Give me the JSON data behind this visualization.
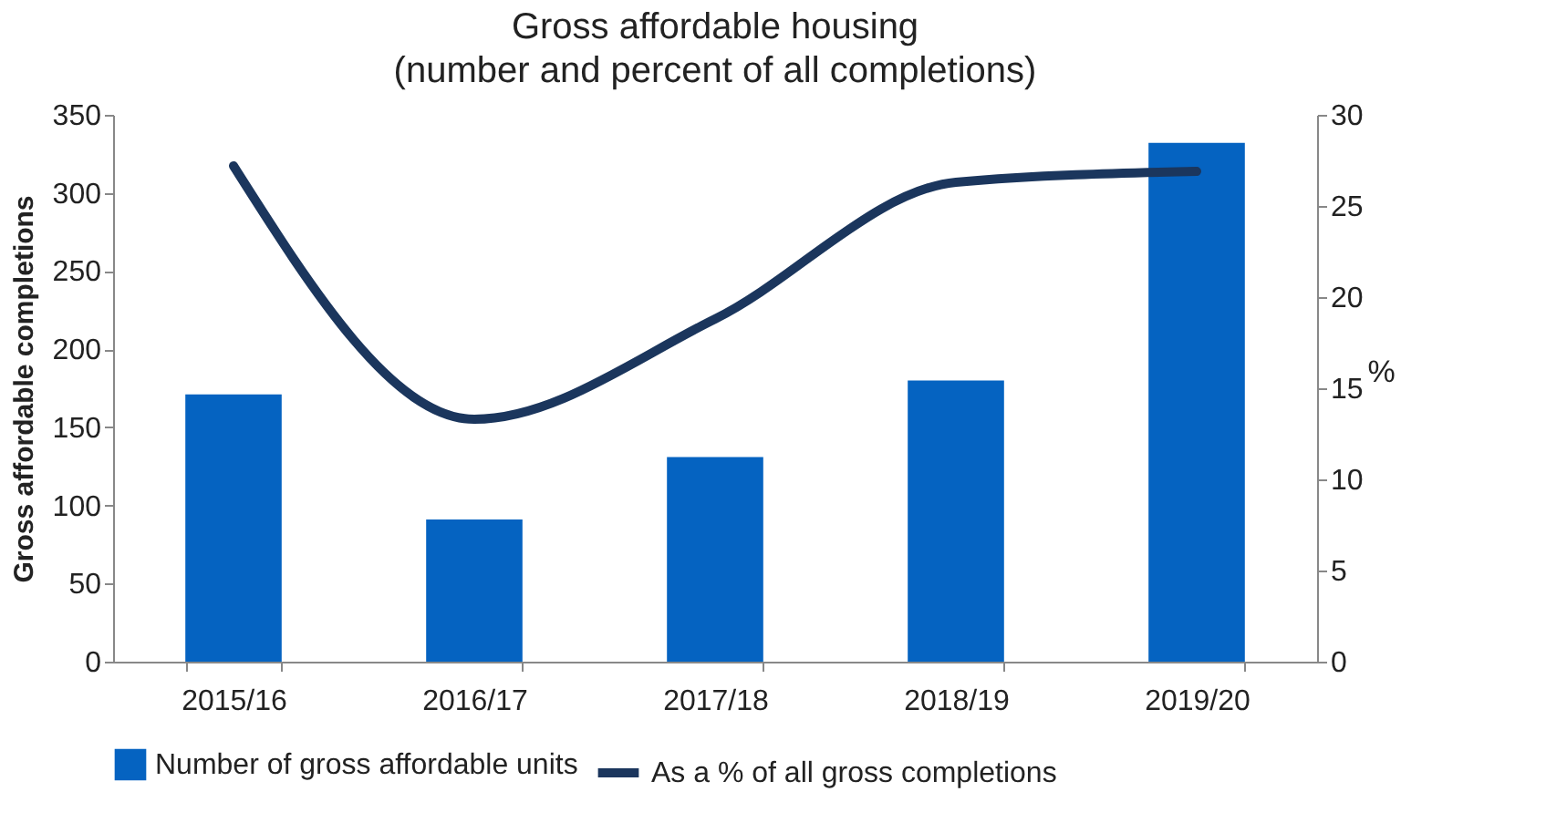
{
  "chart_data": {
    "type": "bar",
    "title": "Gross affordable housing",
    "subtitle": "(number and percent of all completions)",
    "ylabel": "Gross affordable completions",
    "y2label": "%",
    "categories": [
      "2015/16",
      "2016/17",
      "2017/18",
      "2018/19",
      "2019/20"
    ],
    "series": [
      {
        "name": "Number of gross affordable units",
        "color": "#0563c1",
        "values": [
          171,
          91,
          131,
          180,
          332
        ]
      },
      {
        "name": "As a % of all gross completions",
        "type": "line",
        "axis": "y2",
        "color": "#1b365d",
        "values": [
          27.2,
          13.3,
          18.8,
          26.3,
          26.9
        ]
      }
    ],
    "ylim": [
      0,
      350
    ],
    "yticks": [
      0,
      50,
      100,
      150,
      200,
      250,
      300,
      350
    ],
    "y2lim": [
      0,
      30
    ],
    "y2ticks": [
      0,
      5,
      10,
      15,
      20,
      25,
      30
    ],
    "legend": "bottom",
    "grid": false
  }
}
